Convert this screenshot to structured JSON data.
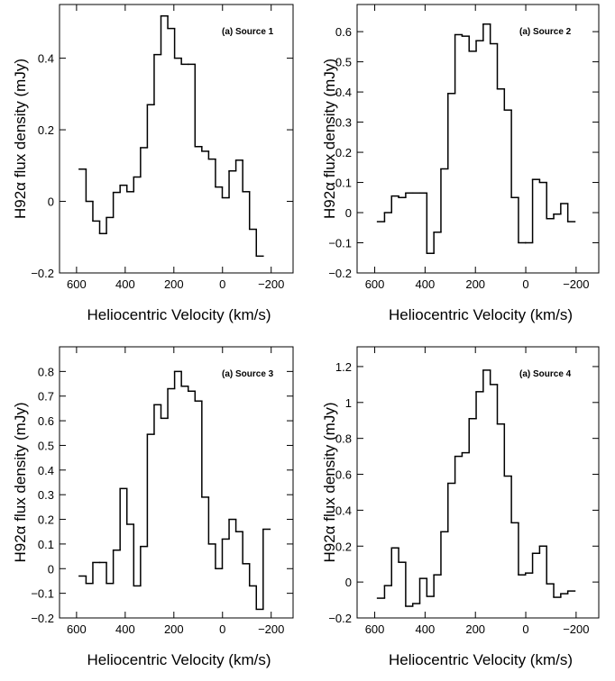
{
  "chart_data": [
    {
      "type": "step",
      "annotation": "(a) Source 1",
      "xlabel": "Heliocentric Velocity  (km/s)",
      "ylabel": "H92α flux density  (mJy)",
      "x": [
        575,
        547,
        519,
        491,
        463,
        435,
        407,
        379,
        351,
        323,
        295,
        267,
        239,
        211,
        183,
        155,
        127,
        99,
        71,
        43,
        15,
        -13,
        -41,
        -69,
        -97,
        -125,
        -153
      ],
      "series": [
        {
          "color": "#000000",
          "values": [
            0.09,
            0,
            -0.055,
            -0.09,
            -0.045,
            0.025,
            0.045,
            0.027,
            0.068,
            0.15,
            0.27,
            0.41,
            0.518,
            0.483,
            0.4,
            0.383,
            0.383,
            0.153,
            0.14,
            0.118,
            0.04,
            0.01,
            0.085,
            0.115,
            0.027,
            -0.078,
            -0.153
          ]
        }
      ],
      "xlim": [
        670,
        -290
      ],
      "ylim": [
        -0.2,
        0.55
      ],
      "xticks": [
        600,
        400,
        200,
        0,
        {
          "value": -200,
          "label": "−200"
        }
      ],
      "yticks": [
        {
          "value": -0.2,
          "label": "−0.2"
        },
        0,
        0.2,
        0.4
      ]
    },
    {
      "type": "step",
      "annotation": "(a) Source 2",
      "xlabel": "Heliocentric Velocity  (km/s)",
      "ylabel": "H92α flux density  (mJy)",
      "x": [
        575,
        547,
        519,
        491,
        463,
        435,
        407,
        379,
        351,
        323,
        295,
        267,
        239,
        211,
        183,
        155,
        127,
        99,
        71,
        43,
        15,
        -13,
        -41,
        -69,
        -97,
        -125,
        -153,
        -181
      ],
      "series": [
        {
          "color": "#000000",
          "values": [
            -0.03,
            0,
            0.055,
            0.05,
            0.065,
            0.065,
            0.065,
            -0.135,
            -0.065,
            0.145,
            0.395,
            0.59,
            0.585,
            0.535,
            0.57,
            0.625,
            0.56,
            0.41,
            0.34,
            0.05,
            -0.1,
            -0.1,
            0.11,
            0.1,
            -0.02,
            -0.005,
            0.03,
            -0.03
          ]
        }
      ],
      "xlim": [
        670,
        -290
      ],
      "ylim": [
        -0.2,
        0.69
      ],
      "xticks": [
        600,
        400,
        200,
        0,
        {
          "value": -200,
          "label": "−200"
        }
      ],
      "yticks": [
        {
          "value": -0.2,
          "label": "−0.2"
        },
        {
          "value": -0.1,
          "label": "−0.1"
        },
        0,
        0.1,
        0.2,
        0.3,
        0.4,
        0.5,
        0.6
      ]
    },
    {
      "type": "step",
      "annotation": "(a) Source 3",
      "xlabel": "Heliocentric Velocity  (km/s)",
      "ylabel": "H92α flux density  (mJy)",
      "x": [
        575,
        547,
        519,
        491,
        463,
        435,
        407,
        379,
        351,
        323,
        295,
        267,
        239,
        211,
        183,
        155,
        127,
        99,
        71,
        43,
        15,
        -13,
        -41,
        -69,
        -97,
        -125,
        -153,
        -181
      ],
      "series": [
        {
          "color": "#000000",
          "values": [
            -0.03,
            -0.06,
            0.025,
            0.025,
            -0.06,
            0.075,
            0.325,
            0.18,
            -0.07,
            0.09,
            0.545,
            0.665,
            0.61,
            0.73,
            0.8,
            0.74,
            0.72,
            0.68,
            0.29,
            0.1,
            0,
            0.12,
            0.2,
            0.15,
            0.02,
            -0.07,
            -0.165,
            0.16
          ]
        }
      ],
      "xlim": [
        670,
        -290
      ],
      "ylim": [
        -0.2,
        0.9
      ],
      "xticks": [
        600,
        400,
        200,
        0,
        {
          "value": -200,
          "label": "−200"
        }
      ],
      "yticks": [
        {
          "value": -0.2,
          "label": "−0.2"
        },
        {
          "value": -0.1,
          "label": "−0.1"
        },
        0,
        0.1,
        0.2,
        0.3,
        0.4,
        0.5,
        0.6,
        0.7,
        0.8
      ]
    },
    {
      "type": "step",
      "annotation": "(a) Source 4",
      "xlabel": "Heliocentric Velocity  (km/s)",
      "ylabel": "H92α flux density  (mJy)",
      "x": [
        575,
        547,
        519,
        491,
        463,
        435,
        407,
        379,
        351,
        323,
        295,
        267,
        239,
        211,
        183,
        155,
        127,
        99,
        71,
        43,
        15,
        -13,
        -41,
        -69,
        -97,
        -125,
        -153,
        -181
      ],
      "series": [
        {
          "color": "#000000",
          "values": [
            -0.09,
            -0.02,
            0.19,
            0.11,
            -0.135,
            -0.12,
            0.02,
            -0.08,
            0.04,
            0.28,
            0.55,
            0.7,
            0.72,
            0.91,
            1.06,
            1.18,
            1.1,
            0.88,
            0.59,
            0.33,
            0.04,
            0.05,
            0.16,
            0.2,
            -0.01,
            -0.085,
            -0.065,
            -0.05
          ]
        }
      ],
      "xlim": [
        670,
        -290
      ],
      "ylim": [
        -0.2,
        1.31
      ],
      "xticks": [
        600,
        400,
        200,
        0,
        {
          "value": -200,
          "label": "−200"
        }
      ],
      "yticks": [
        {
          "value": -0.2,
          "label": "−0.2"
        },
        0,
        0.2,
        0.4,
        0.6,
        0.8,
        1,
        1.2
      ]
    }
  ]
}
